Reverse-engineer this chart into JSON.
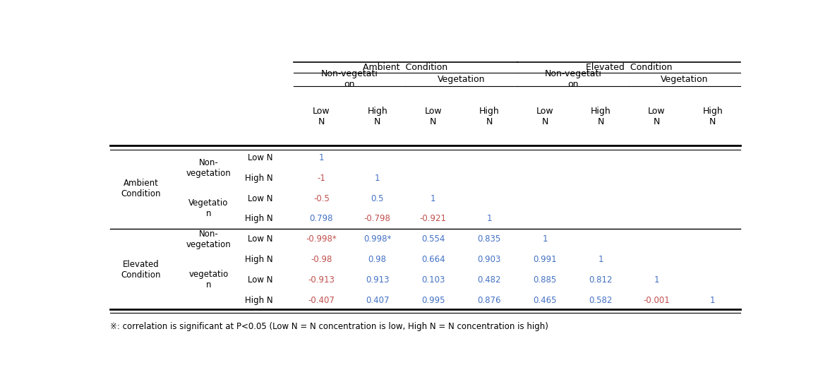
{
  "footnote": "※: correlation is significant at P<0.05 (Low N = N concentration is low, High N = N concentration is high)",
  "col_headers_level3": [
    "Low\nN",
    "High\nN",
    "Low\nN",
    "High\nN",
    "Low\nN",
    "High\nN",
    "Low\nN",
    "High\nN"
  ],
  "colors": {
    "positive": "#4472C4",
    "negative": "#C0504D",
    "diagonal": "#4472C4",
    "background": "#FFFFFF"
  }
}
